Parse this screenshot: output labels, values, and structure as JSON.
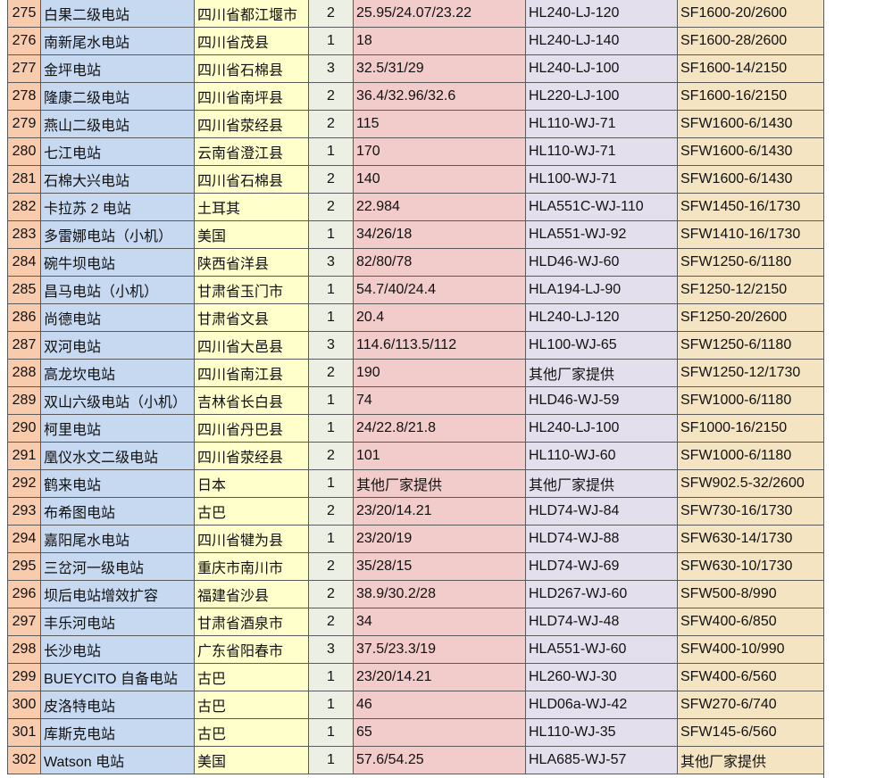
{
  "colors": {
    "index": "#f8cbad",
    "name": "#c6d9f1",
    "location": "#ffffcc",
    "count": "#ecefe4",
    "head": "#f2cbcb",
    "turbine": "#e4dfec",
    "generator": "#f5e4c2"
  },
  "rows": [
    [
      "275",
      "白果二级电站",
      "四川省都江堰市",
      "2",
      "25.95/24.07/23.22",
      "HL240-LJ-120",
      "SF1600-20/2600"
    ],
    [
      "276",
      "南新尾水电站",
      "四川省茂县",
      "1",
      "18",
      "HL240-LJ-140",
      "SF1600-28/2600"
    ],
    [
      "277",
      "金坪电站",
      "四川省石棉县",
      "3",
      "32.5/31/29",
      "HL240-LJ-100",
      "SF1600-14/2150"
    ],
    [
      "278",
      "隆康二级电站",
      "四川省南坪县",
      "2",
      "36.4/32.96/32.6",
      "HL220-LJ-100",
      "SF1600-16/2150"
    ],
    [
      "279",
      "燕山二级电站",
      "四川省荥经县",
      "2",
      "115",
      "HL110-WJ-71",
      "SFW1600-6/1430"
    ],
    [
      "280",
      "七江电站",
      "云南省澄江县",
      "1",
      "170",
      "HL110-WJ-71",
      "SFW1600-6/1430"
    ],
    [
      "281",
      "石棉大兴电站",
      "四川省石棉县",
      "2",
      "140",
      "HL100-WJ-71",
      "SFW1600-6/1430"
    ],
    [
      "282",
      "卡拉苏 2 电站",
      "土耳其",
      "2",
      "22.984",
      "HLA551C-WJ-110",
      "SFW1450-16/1730"
    ],
    [
      "283",
      "多雷娜电站（小机）",
      "美国",
      "1",
      "34/26/18",
      "HLA551-WJ-92",
      "SFW1410-16/1730"
    ],
    [
      "284",
      "碗牛坝电站",
      "陕西省洋县",
      "3",
      "82/80/78",
      "HLD46-WJ-60",
      "SFW1250-6/1180"
    ],
    [
      "285",
      "昌马电站（小机）",
      "甘肃省玉门市",
      "1",
      "54.7/40/24.4",
      "HLA194-LJ-90",
      "SF1250-12/2150"
    ],
    [
      "286",
      "尚德电站",
      "甘肃省文县",
      "1",
      "20.4",
      "HL240-LJ-120",
      "SF1250-20/2600"
    ],
    [
      "287",
      "双河电站",
      "四川省大邑县",
      "3",
      "114.6/113.5/112",
      "HL100-WJ-65",
      "SFW1250-6/1180"
    ],
    [
      "288",
      "高龙坎电站",
      "四川省南江县",
      "2",
      "190",
      "其他厂家提供",
      "SFW1250-12/1730"
    ],
    [
      "289",
      "双山六级电站（小机）",
      "吉林省长白县",
      "1",
      "74",
      "HLD46-WJ-59",
      "SFW1000-6/1180"
    ],
    [
      "290",
      "柯里电站",
      "四川省丹巴县",
      "1",
      "24/22.8/21.8",
      "HL240-LJ-100",
      "SF1000-16/2150"
    ],
    [
      "291",
      "凰仪水文二级电站",
      "四川省荥经县",
      "2",
      "101",
      "HL110-WJ-60",
      "SFW1000-6/1180"
    ],
    [
      "292",
      "鹤来电站",
      "日本",
      "1",
      "其他厂家提供",
      "其他厂家提供",
      "SFW902.5-32/2600"
    ],
    [
      "293",
      "布希图电站",
      "古巴",
      "2",
      "23/20/14.21",
      "HLD74-WJ-84",
      "SFW730-16/1730"
    ],
    [
      "294",
      "嘉阳尾水电站",
      "四川省犍为县",
      "1",
      "23/20/19",
      "HLD74-WJ-88",
      "SFW630-14/1730"
    ],
    [
      "295",
      "三岔河一级电站",
      "重庆市南川市",
      "2",
      "35/28/15",
      "HLD74-WJ-69",
      "SFW630-10/1730"
    ],
    [
      "296",
      "坝后电站增效扩容",
      "福建省沙县",
      "2",
      "38.9/30.2/28",
      "HLD267-WJ-60",
      "SFW500-8/990"
    ],
    [
      "297",
      "丰乐河电站",
      "甘肃省酒泉市",
      "2",
      "34",
      "HLD74-WJ-48",
      "SFW400-6/850"
    ],
    [
      "298",
      "长沙电站",
      "广东省阳春市",
      "3",
      "37.5/23.3/19",
      "HLA551-WJ-60",
      "SFW400-10/990"
    ],
    [
      "299",
      "BUEYCITO 自备电站",
      "古巴",
      "1",
      "23/20/14.21",
      "HL260-WJ-30",
      "SFW400-6/560"
    ],
    [
      "300",
      "皮洛特电站",
      "古巴",
      "1",
      "46",
      "HLD06a-WJ-42",
      "SFW270-6/740"
    ],
    [
      "301",
      "库斯克电站",
      "古巴",
      "1",
      "65",
      "HL110-WJ-35",
      "SFW145-6/560"
    ],
    [
      "302",
      "Watson  电站",
      "美国",
      "1",
      "57.6/54.25",
      "HLA685-WJ-57",
      "其他厂家提供"
    ]
  ]
}
